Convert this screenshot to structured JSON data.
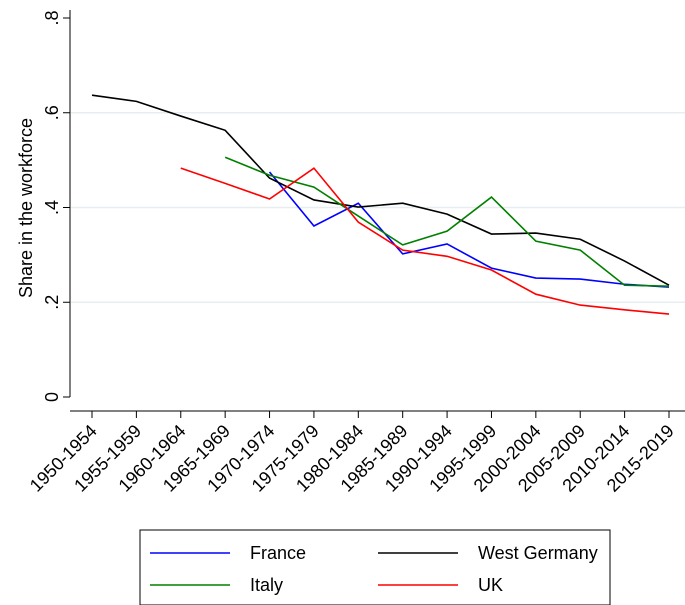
{
  "chart_data": {
    "type": "line",
    "y_label": "Share in the workforce",
    "categories": [
      "1950-1954",
      "1955-1959",
      "1960-1964",
      "1965-1969",
      "1970-1974",
      "1975-1979",
      "1980-1984",
      "1985-1989",
      "1990-1994",
      "1995-1999",
      "2000-2004",
      "2005-2009",
      "2010-2014",
      "2015-2019"
    ],
    "series": [
      {
        "name": "France",
        "color": "#0000ff",
        "values": [
          null,
          null,
          null,
          null,
          0.475,
          0.361,
          0.409,
          0.302,
          0.323,
          0.272,
          0.251,
          0.249,
          0.238,
          0.232
        ]
      },
      {
        "name": "West Germany",
        "color": "#000000",
        "values": [
          0.637,
          0.624,
          0.593,
          0.563,
          0.462,
          0.416,
          0.401,
          0.409,
          0.386,
          0.344,
          0.346,
          0.333,
          0.287,
          0.236
        ]
      },
      {
        "name": "Italy",
        "color": "#008000",
        "values": [
          null,
          null,
          null,
          0.506,
          0.468,
          0.443,
          0.382,
          0.321,
          0.35,
          0.422,
          0.329,
          0.31,
          0.236,
          0.234
        ]
      },
      {
        "name": "UK",
        "color": "#ff0000",
        "values": [
          null,
          null,
          0.483,
          0.451,
          0.418,
          0.483,
          0.369,
          0.31,
          0.297,
          0.268,
          0.217,
          0.194,
          0.184,
          0.175
        ]
      }
    ],
    "ylim": [
      0,
      0.8
    ],
    "yticks": [
      0,
      {
        "value": 0.2,
        "label": ".2"
      },
      {
        "value": 0.4,
        "label": ".4"
      },
      {
        "value": 0.6,
        "label": ".6"
      },
      {
        "value": 0.8,
        "label": ".8"
      }
    ],
    "grid": true
  }
}
